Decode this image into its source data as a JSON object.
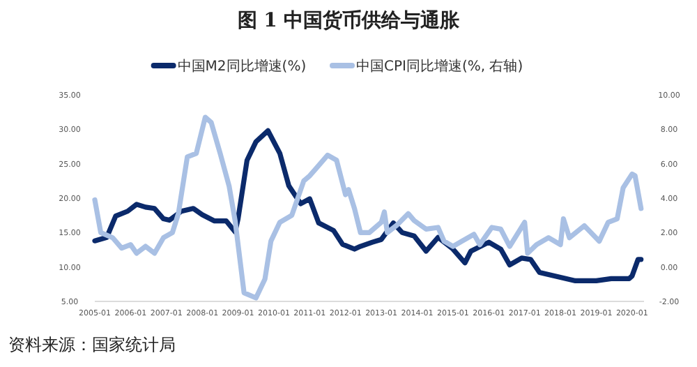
{
  "chart_data": {
    "type": "line",
    "title": "图 1  中国货币供给与通胀",
    "legend": "top",
    "line_style": "solid",
    "marker": "none",
    "grid": false,
    "xlim": [
      "2005-01",
      "2020-05"
    ],
    "xticks": [
      "2005-01",
      "2006-01",
      "2007-01",
      "2008-01",
      "2009-01",
      "2010-01",
      "2011-01",
      "2012-01",
      "2013-01",
      "2014-01",
      "2015-01",
      "2016-01",
      "2017-01",
      "2018-01",
      "2019-01",
      "2020-01"
    ],
    "ylim": [
      5,
      35
    ],
    "yticks": [
      {
        "value": 5,
        "label": "5.00"
      },
      {
        "value": 10,
        "label": "10.00"
      },
      {
        "value": 15,
        "label": "15.00"
      },
      {
        "value": 20,
        "label": "20.00"
      },
      {
        "value": 25,
        "label": "25.00"
      },
      {
        "value": 30,
        "label": "30.00"
      },
      {
        "value": 35,
        "label": "35.00"
      }
    ],
    "y2lim": [
      -2,
      10
    ],
    "y2ticks": [
      {
        "value": -2,
        "label": "-2.00"
      },
      {
        "value": 0,
        "label": "0.00"
      },
      {
        "value": 2,
        "label": "2.00"
      },
      {
        "value": 4,
        "label": "4.00"
      },
      {
        "value": 6,
        "label": "6.00"
      },
      {
        "value": 8,
        "label": "8.00"
      },
      {
        "value": 10,
        "label": "10.00"
      }
    ],
    "series": [
      {
        "name": "中国M2同比增速(%)",
        "color": "#0b2a6b",
        "x": [
          "2005-01",
          "2005-05",
          "2005-08",
          "2005-12",
          "2006-03",
          "2006-06",
          "2006-09",
          "2006-12",
          "2007-02",
          "2007-06",
          "2007-10",
          "2008-01",
          "2008-05",
          "2008-09",
          "2008-12",
          "2009-01",
          "2009-04",
          "2009-07",
          "2009-11",
          "2010-03",
          "2010-06",
          "2010-10",
          "2011-01",
          "2011-04",
          "2011-09",
          "2011-12",
          "2012-04",
          "2012-06",
          "2012-10",
          "2013-01",
          "2013-05",
          "2013-08",
          "2013-12",
          "2014-04",
          "2014-08",
          "2015-01",
          "2015-05",
          "2015-07",
          "2016-01",
          "2016-05",
          "2016-08",
          "2016-12",
          "2017-03",
          "2017-06",
          "2017-12",
          "2018-06",
          "2019-01",
          "2019-06",
          "2019-12",
          "2020-01",
          "2020-03",
          "2020-04"
        ],
        "values": [
          13.8,
          14.3,
          17.4,
          18.1,
          19.1,
          18.7,
          18.5,
          17.0,
          16.8,
          18.1,
          18.5,
          17.6,
          16.7,
          16.7,
          15.1,
          17.0,
          25.5,
          28.2,
          29.8,
          26.5,
          21.8,
          19.2,
          19.9,
          16.4,
          15.3,
          13.3,
          12.6,
          13.0,
          13.6,
          14.0,
          16.4,
          15.0,
          14.5,
          12.3,
          14.3,
          12.6,
          10.6,
          12.3,
          13.6,
          12.6,
          10.3,
          11.3,
          11.1,
          9.2,
          8.6,
          8.0,
          8.0,
          8.3,
          8.3,
          8.7,
          11.1,
          11.1
        ]
      },
      {
        "name": "中国CPI同比增速(%, 右轴)",
        "color": "#a9c0e4",
        "axis": "y2",
        "x": [
          "2005-01",
          "2005-03",
          "2005-07",
          "2005-10",
          "2006-01",
          "2006-03",
          "2006-06",
          "2006-09",
          "2006-12",
          "2007-03",
          "2007-05",
          "2007-08",
          "2007-11",
          "2008-02",
          "2008-04",
          "2008-07",
          "2008-10",
          "2008-12",
          "2009-03",
          "2009-07",
          "2009-10",
          "2009-12",
          "2010-03",
          "2010-07",
          "2010-11",
          "2011-01",
          "2011-03",
          "2011-07",
          "2011-10",
          "2012-01",
          "2012-02",
          "2012-04",
          "2012-06",
          "2012-09",
          "2013-01",
          "2013-02",
          "2013-03",
          "2013-06",
          "2013-10",
          "2013-12",
          "2014-04",
          "2014-08",
          "2014-10",
          "2015-01",
          "2015-04",
          "2015-08",
          "2015-10",
          "2016-02",
          "2016-05",
          "2016-08",
          "2017-01",
          "2017-02",
          "2017-05",
          "2017-09",
          "2018-01",
          "2018-02",
          "2018-04",
          "2018-09",
          "2019-02",
          "2019-05",
          "2019-08",
          "2019-10",
          "2020-01",
          "2020-02",
          "2020-04"
        ],
        "values": [
          3.9,
          2.0,
          1.7,
          1.1,
          1.3,
          0.8,
          1.2,
          0.8,
          1.7,
          2.0,
          3.1,
          6.4,
          6.6,
          8.7,
          8.4,
          6.6,
          4.7,
          2.7,
          -1.5,
          -1.8,
          -0.7,
          1.5,
          2.6,
          3.0,
          5.0,
          5.3,
          5.7,
          6.5,
          6.2,
          4.2,
          4.5,
          3.4,
          2.0,
          2.0,
          2.6,
          3.2,
          2.0,
          2.4,
          3.1,
          2.7,
          2.2,
          2.3,
          1.5,
          1.2,
          1.5,
          1.9,
          1.3,
          2.3,
          2.2,
          1.2,
          2.6,
          0.8,
          1.3,
          1.7,
          1.3,
          2.8,
          1.7,
          2.4,
          1.5,
          2.6,
          2.8,
          4.6,
          5.4,
          5.3,
          3.4
        ]
      }
    ],
    "annotations": [
      "资料来源：国家统计局"
    ]
  }
}
